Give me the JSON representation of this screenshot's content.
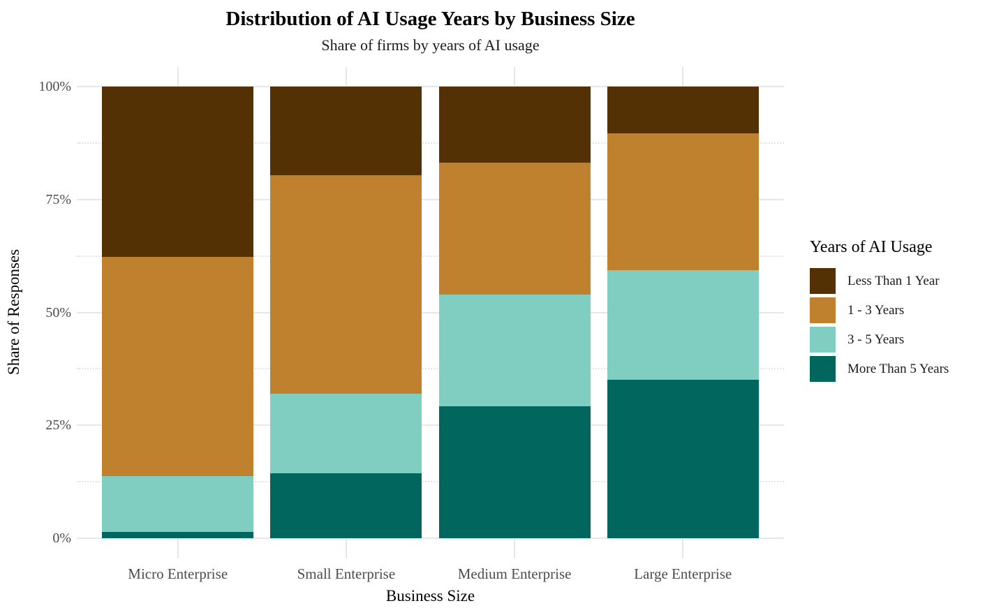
{
  "chart_data": {
    "type": "bar",
    "stacked": true,
    "percent": true,
    "title": "Distribution of AI Usage Years by Business Size",
    "subtitle": "Share of firms by years of AI usage",
    "xlabel": "Business Size",
    "ylabel": "Share of Responses",
    "categories": [
      "Micro Enterprise",
      "Small Enterprise",
      "Medium Enterprise",
      "Large Enterprise"
    ],
    "series": [
      {
        "name": "Less Than 1 Year",
        "color": "#543005",
        "values": [
          37.7,
          19.7,
          16.8,
          10.4
        ]
      },
      {
        "name": "1 - 3 Years",
        "color": "#bf812d",
        "values": [
          48.6,
          48.3,
          29.2,
          30.2
        ]
      },
      {
        "name": "3 - 5 Years",
        "color": "#80cdc1",
        "values": [
          12.3,
          17.7,
          24.8,
          24.3
        ]
      },
      {
        "name": "More Than 5 Years",
        "color": "#01665e",
        "values": [
          1.4,
          14.3,
          29.2,
          35.1
        ]
      }
    ],
    "ylim": [
      0,
      100
    ],
    "ytick_labels": [
      "0%",
      "25%",
      "50%",
      "75%",
      "100%"
    ],
    "ytick_values": [
      0,
      25,
      50,
      75,
      100
    ],
    "minor_tick_values": [
      12.5,
      37.5,
      62.5,
      87.5
    ],
    "grid": true,
    "legend_title": "Years of AI Usage",
    "legend_position": "right",
    "background": "#ffffff"
  }
}
